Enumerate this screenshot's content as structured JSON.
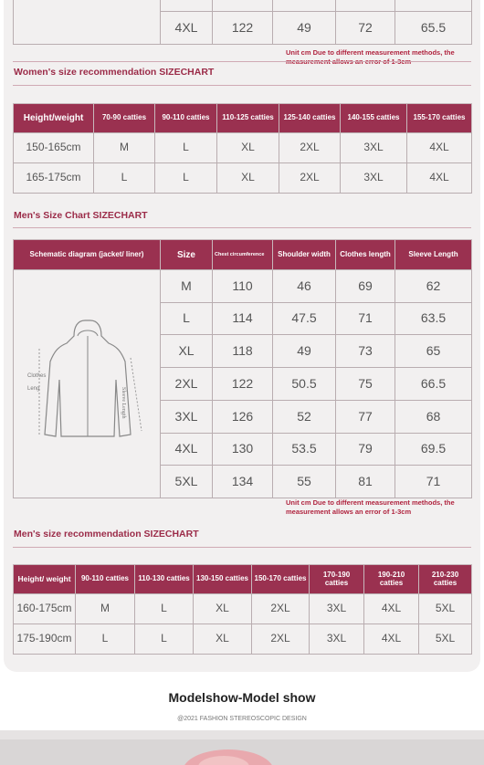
{
  "top_row": [
    "4XL",
    122,
    49,
    72,
    65.5
  ],
  "note_1": "Unit cm Due to different measurement methods, the measurement allows an error of 1-3cm",
  "women": {
    "title": "Women's size recommendation SIZECHART",
    "header": [
      "Height/weight",
      "70-90 catties",
      "90-110 catties",
      "110-125 catties",
      "125-140 catties",
      "140-155 catties",
      "155-170 catties"
    ],
    "rows": [
      [
        "150-165cm",
        "M",
        "L",
        "XL",
        "2XL",
        "3XL",
        "4XL"
      ],
      [
        "165-175cm",
        "L",
        "L",
        "XL",
        "2XL",
        "3XL",
        "4XL"
      ]
    ]
  },
  "mens_chart": {
    "title": "Men's Size Chart SIZECHART",
    "header": [
      "Schematic diagram (jacket/ liner)",
      "Size",
      "Chest circumference",
      "Shoulder width",
      "Clothes length",
      "Sleeve Length"
    ],
    "diagram_labels": [
      "Clothes",
      "Leng",
      "Sleeve Length"
    ],
    "rows": [
      [
        "M",
        110,
        46,
        69,
        62
      ],
      [
        "L",
        114,
        47.5,
        71,
        63.5
      ],
      [
        "XL",
        118,
        49,
        73,
        65
      ],
      [
        "2XL",
        122,
        50.5,
        75,
        66.5
      ],
      [
        "3XL",
        126,
        52,
        77,
        68
      ],
      [
        "4XL",
        130,
        53.5,
        79,
        69.5
      ],
      [
        "5XL",
        134,
        55,
        81,
        71
      ]
    ]
  },
  "note_2": "Unit cm Due to different measurement methods, the measurement allows an error of 1-3cm",
  "mens_rec": {
    "title": "Men's size recommendation SIZECHART",
    "header": [
      "Height/ weight",
      "90-110 catties",
      "110-130 catties",
      "130-150 catties",
      "150-170 catties",
      "170-190 catties",
      "190-210 catties",
      "210-230 catties"
    ],
    "rows": [
      [
        "160-175cm",
        "M",
        "L",
        "XL",
        "2XL",
        "3XL",
        "4XL",
        "5XL"
      ],
      [
        "175-190cm",
        "L",
        "L",
        "XL",
        "2XL",
        "3XL",
        "4XL",
        "5XL"
      ]
    ]
  },
  "model_show": {
    "title": "Modelshow-Model show",
    "subtitle": "@2021 FASHION STEREOSCOPIC DESIGN"
  }
}
